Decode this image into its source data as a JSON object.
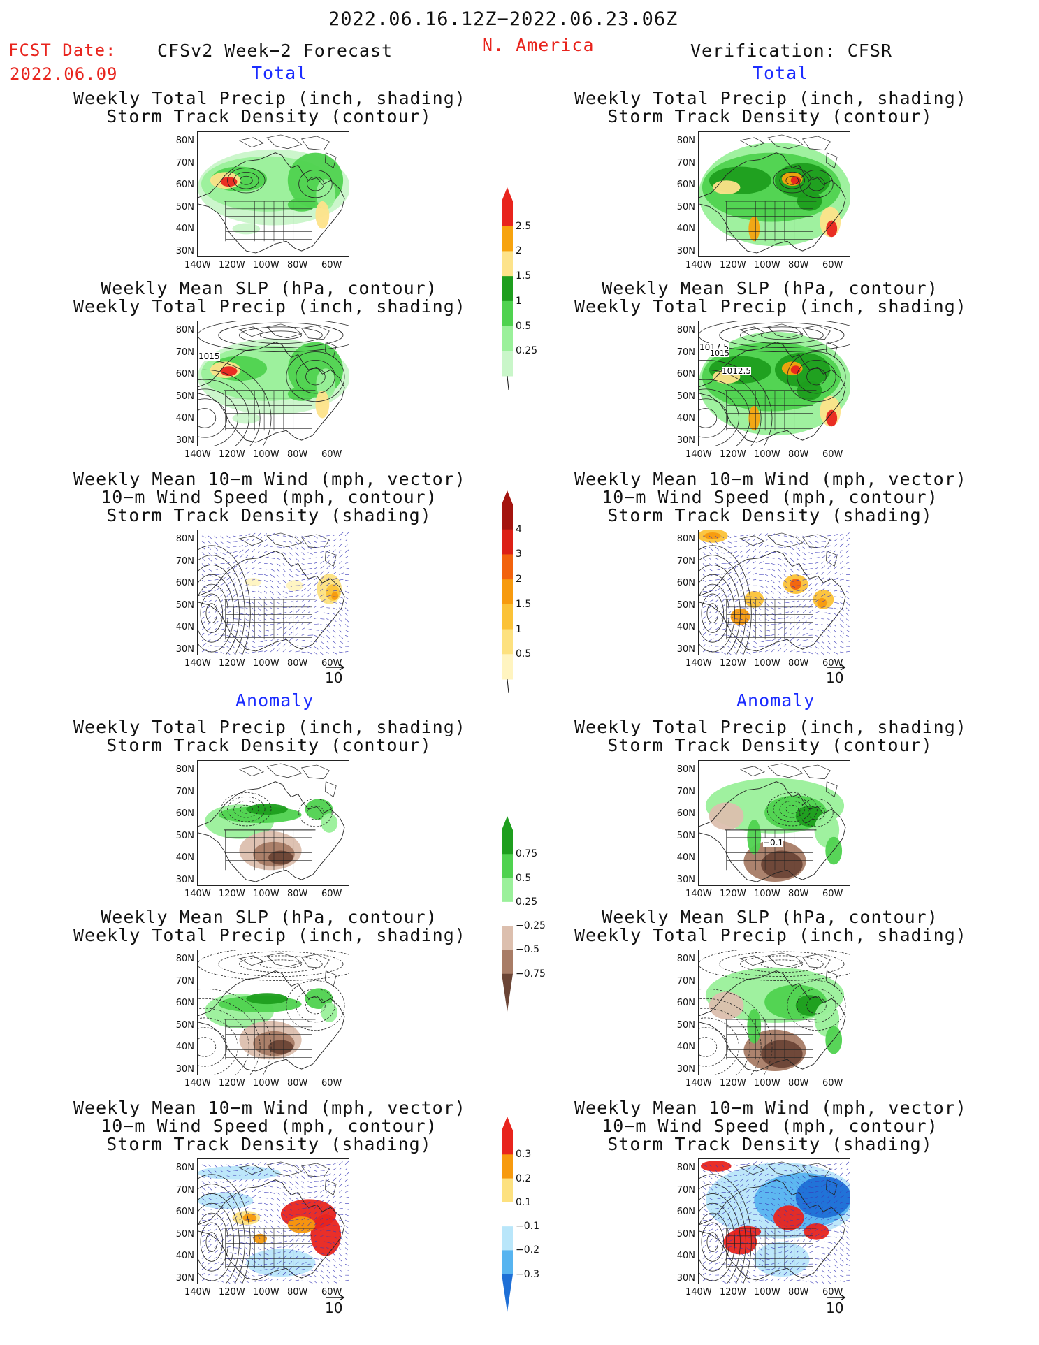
{
  "header": {
    "date_range": "2022.06.16.12Z−2022.06.23.06Z",
    "fcst_label": "FCST Date:",
    "fcst_date": "2022.06.09",
    "model": "CFSv2 Week−2 Forecast",
    "region": "N. America",
    "verification": "Verification: CFSR"
  },
  "sections": {
    "total": "Total",
    "anomaly": "Anomaly"
  },
  "panel_titles": {
    "precip_storm": [
      "Weekly Total Precip (inch, shading)",
      "Storm Track Density (contour)"
    ],
    "slp_precip": [
      "Weekly Mean SLP (hPa, contour)",
      "Weekly Total Precip (inch, shading)"
    ],
    "wind_storm": [
      "Weekly Mean 10−m Wind (mph, vector)",
      "10−m Wind Speed (mph, contour)",
      "Storm Track Density (shading)"
    ]
  },
  "axes": {
    "lat_labels": [
      "80N",
      "70N",
      "60N",
      "50N",
      "40N",
      "30N"
    ],
    "lon_labels": [
      "140W",
      "120W",
      "100W",
      "80W",
      "60W"
    ]
  },
  "contour_labels": {
    "fcst_slp": [
      "1015"
    ],
    "cfsr_slp": [
      "1017.5",
      "1015",
      "1012.5"
    ],
    "fcst_precip_anom": [],
    "cfsr_precip_anom": [
      "−0.1"
    ]
  },
  "vector_reference": "10",
  "colorbars": {
    "precip_total": {
      "labels": [
        "2.5",
        "2",
        "1.5",
        "1",
        "0.5",
        "0.25"
      ],
      "colors": [
        "#e8241d",
        "#f7a30e",
        "#fde38a",
        "#1e9e1e",
        "#4fd24f",
        "#9af09a",
        "#c9f6c9"
      ]
    },
    "storm_total": {
      "labels": [
        "4",
        "3",
        "2",
        "1.5",
        "1",
        "0.5"
      ],
      "colors": [
        "#a4140f",
        "#dc2016",
        "#f2620d",
        "#f79a0e",
        "#fbc237",
        "#fde17f",
        "#fff4c0"
      ]
    },
    "precip_anom": {
      "labels": [
        "0.75",
        "0.5",
        "0.25",
        "−0.25",
        "−0.5",
        "−0.75"
      ],
      "colors": [
        "#1e9e1e",
        "#4fd24f",
        "#9af09a",
        "#ffffff",
        "#dcbfae",
        "#a87c66",
        "#6b4536"
      ]
    },
    "storm_anom": {
      "labels": [
        "0.3",
        "0.2",
        "0.1",
        "−0.1",
        "−0.2",
        "−0.3"
      ],
      "colors": [
        "#e8241d",
        "#f79a0e",
        "#fde17f",
        "#ffffff",
        "#b9e6fa",
        "#57b4f0",
        "#1e6fd6"
      ]
    }
  }
}
